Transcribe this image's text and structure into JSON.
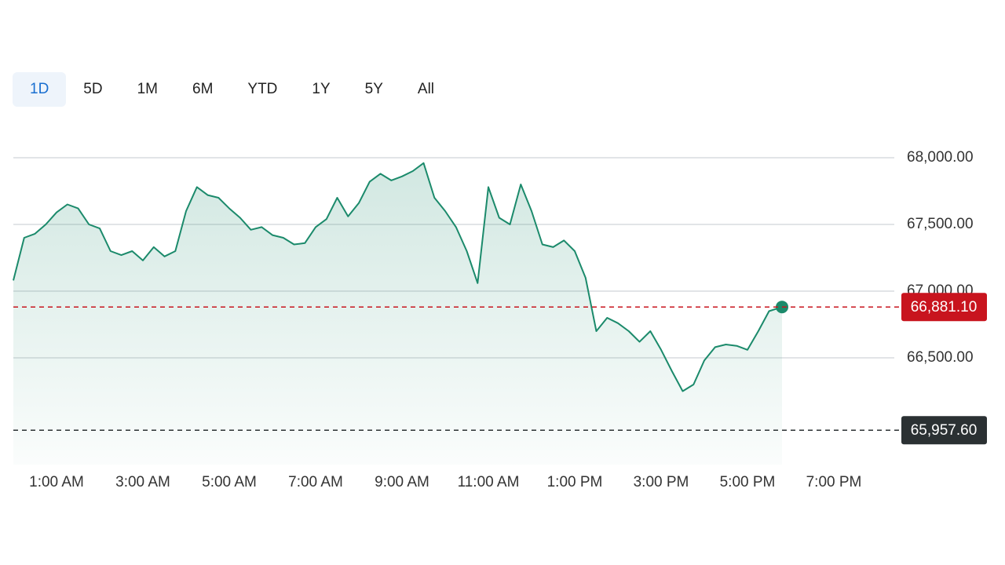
{
  "tabs": [
    "1D",
    "5D",
    "1M",
    "6M",
    "YTD",
    "1Y",
    "5Y",
    "All"
  ],
  "selected_tab": 0,
  "chart_data": {
    "type": "line",
    "color": "#1b8a6b",
    "x": [
      0,
      0.25,
      0.5,
      0.75,
      1,
      1.25,
      1.5,
      1.75,
      2,
      2.25,
      2.5,
      2.75,
      3,
      3.25,
      3.5,
      3.75,
      4,
      4.25,
      4.5,
      4.75,
      5,
      5.25,
      5.5,
      5.75,
      6,
      6.25,
      6.5,
      6.75,
      7,
      7.25,
      7.5,
      7.75,
      8,
      8.25,
      8.5,
      8.75,
      9,
      9.25,
      9.5,
      9.75,
      10,
      10.25,
      10.5,
      10.75,
      11,
      11.25,
      11.5,
      11.75,
      12,
      12.25,
      12.5,
      12.75,
      13,
      13.25,
      13.5,
      13.75,
      14,
      14.25,
      14.5,
      14.75,
      15,
      15.25,
      15.5,
      15.75,
      16,
      16.25,
      16.5,
      16.75,
      17,
      17.25,
      17.5,
      17.8
    ],
    "values": [
      67080,
      67400,
      67430,
      67500,
      67590,
      67650,
      67620,
      67500,
      67470,
      67300,
      67270,
      67300,
      67230,
      67330,
      67260,
      67300,
      67600,
      67780,
      67720,
      67700,
      67620,
      67550,
      67460,
      67480,
      67420,
      67400,
      67350,
      67360,
      67480,
      67540,
      67700,
      67560,
      67660,
      67820,
      67880,
      67830,
      67860,
      67900,
      67960,
      67700,
      67600,
      67480,
      67300,
      67060,
      67780,
      67550,
      67500,
      67800,
      67600,
      67350,
      67330,
      67380,
      67300,
      67100,
      66700,
      66800,
      66760,
      66700,
      66620,
      66700,
      66560,
      66400,
      66250,
      66300,
      66480,
      66580,
      66600,
      66590,
      66560,
      66700,
      66850,
      66881.1
    ],
    "xlim": [
      0,
      20.4
    ],
    "ylim": [
      65700,
      68100
    ],
    "xticks": [
      {
        "value": 1,
        "label": "1:00 AM"
      },
      {
        "value": 3,
        "label": "3:00 AM"
      },
      {
        "value": 5,
        "label": "5:00 AM"
      },
      {
        "value": 7,
        "label": "7:00 AM"
      },
      {
        "value": 9,
        "label": "9:00 AM"
      },
      {
        "value": 11,
        "label": "11:00 AM"
      },
      {
        "value": 13,
        "label": "1:00 PM"
      },
      {
        "value": 15,
        "label": "3:00 PM"
      },
      {
        "value": 17,
        "label": "5:00 PM"
      },
      {
        "value": 19,
        "label": "7:00 PM"
      }
    ],
    "yticks": [
      {
        "value": 66500,
        "label": "66,500.00"
      },
      {
        "value": 67000,
        "label": "67,000.00"
      },
      {
        "value": 67500,
        "label": "67,500.00"
      },
      {
        "value": 68000,
        "label": "68,000.00"
      }
    ],
    "grid": true,
    "current_price": {
      "value": 66881.1,
      "label": "66,881.10",
      "color": "#c8141e"
    },
    "previous_close": {
      "value": 65957.6,
      "label": "65,957.60",
      "color": "#2b3133"
    }
  }
}
